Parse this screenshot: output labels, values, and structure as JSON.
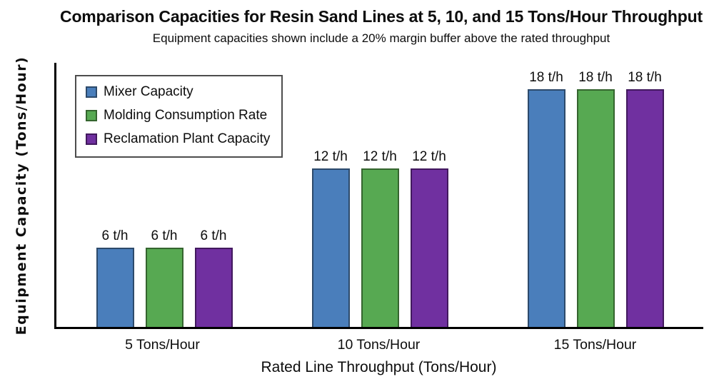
{
  "page": {
    "background": "#ffffff",
    "text_color": "#0d0d0d",
    "axis_color": "#000000",
    "legend_border_color": "#4d4d4d"
  },
  "chart_data": {
    "type": "bar",
    "title": "Comparison Capacities for Resin Sand Lines at 5, 10, and 15 Tons/Hour Throughput",
    "subtitle": "Equipment capacities shown include a 20% margin buffer above the rated throughput",
    "xlabel": "Rated Line Throughput (Tons/Hour)",
    "ylabel": "Equipment Capacity (Tons/Hour)",
    "categories": [
      "5 Tons/Hour",
      "10 Tons/Hour",
      "15 Tons/Hour"
    ],
    "series": [
      {
        "name": "Mixer Capacity",
        "values": [
          6,
          12,
          18
        ],
        "labels": [
          "6 t/h",
          "12 t/h",
          "18 t/h"
        ],
        "color": "#4a7ebb",
        "border_color": "#2d4a6b"
      },
      {
        "name": "Molding Consumption Rate",
        "values": [
          6,
          12,
          18
        ],
        "labels": [
          "6 t/h",
          "12 t/h",
          "18 t/h"
        ],
        "color": "#57a952",
        "border_color": "#35652f"
      },
      {
        "name": "Reclamation Plant Capacity",
        "values": [
          6,
          12,
          18
        ],
        "labels": [
          "6 t/h",
          "12 t/h",
          "18 t/h"
        ],
        "color": "#7030a0",
        "border_color": "#42195e"
      }
    ],
    "ylim": [
      0,
      20
    ],
    "grid": false,
    "legend_position": "top-left"
  }
}
